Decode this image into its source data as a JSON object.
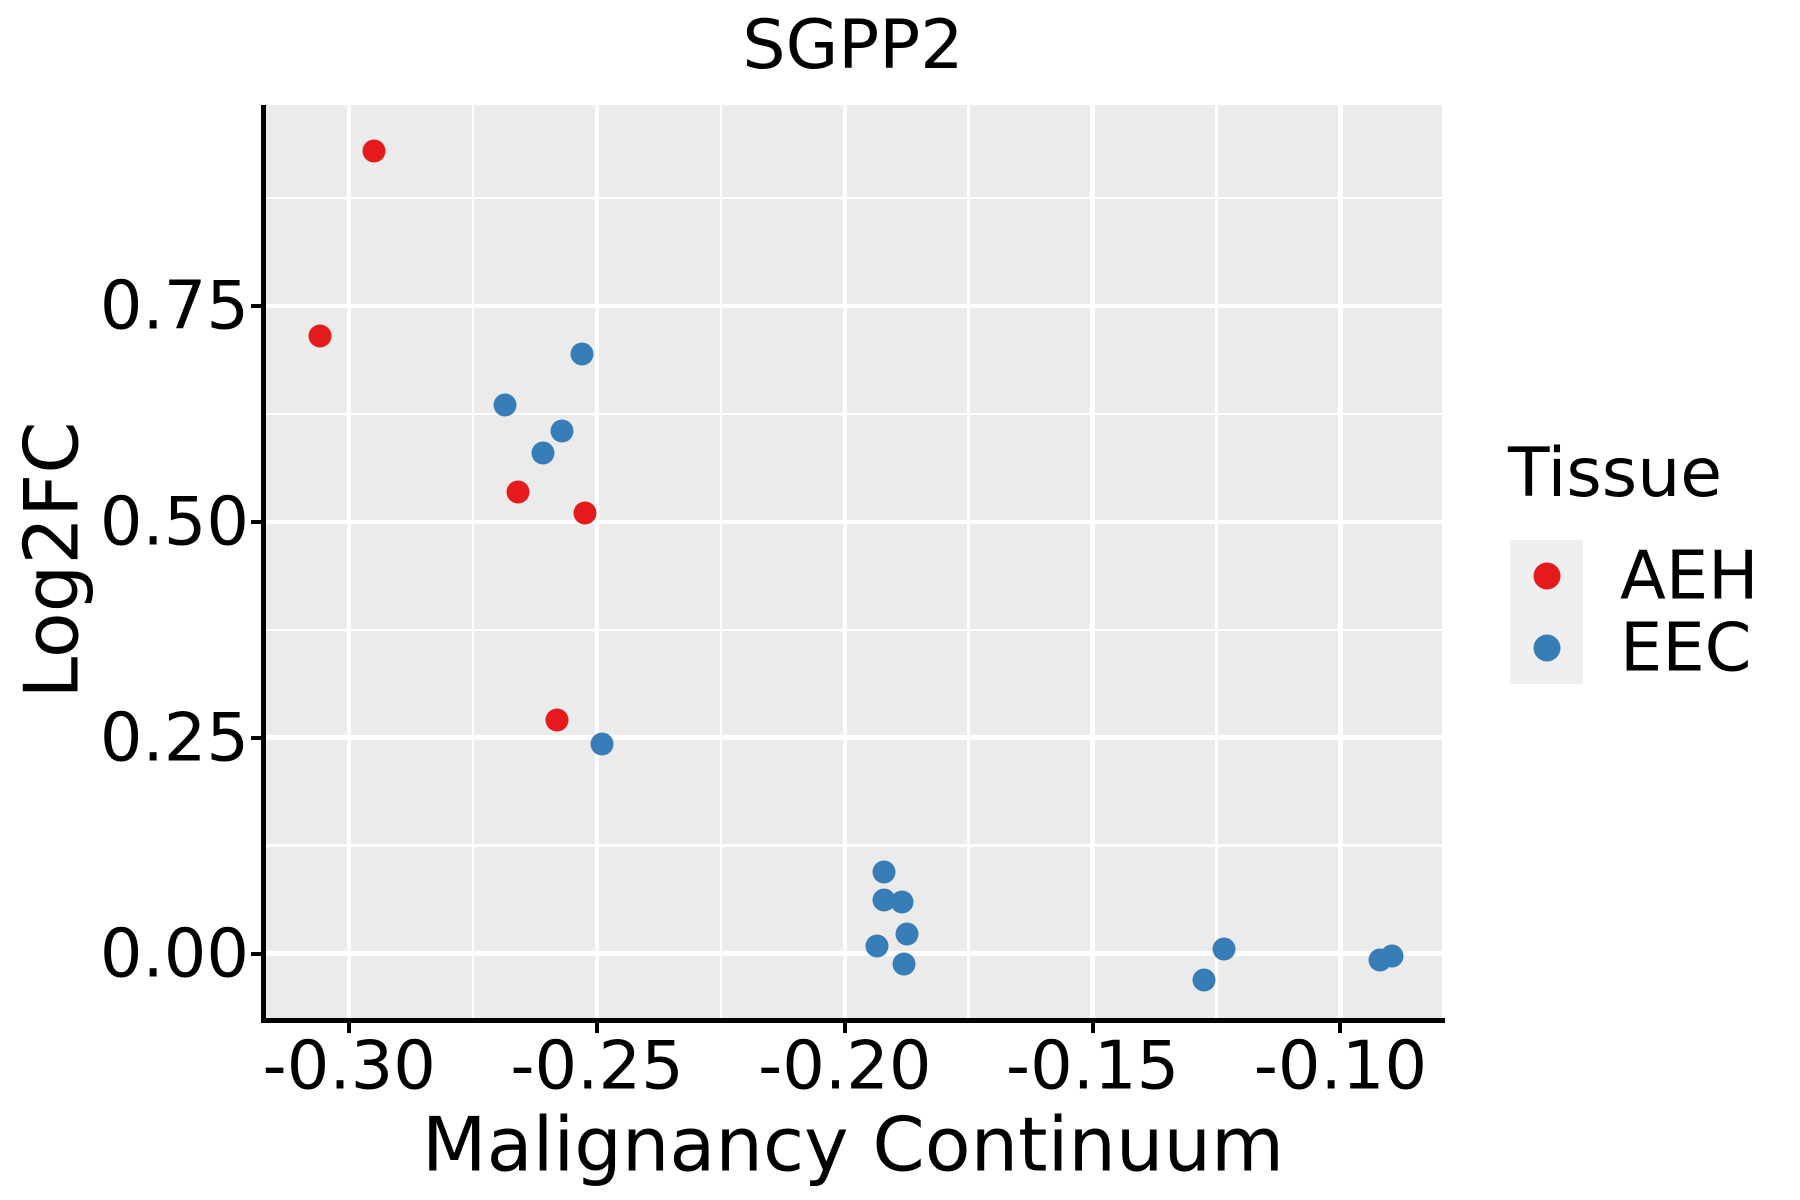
{
  "title": "SGPP2",
  "legend": {
    "title": "Tissue",
    "items": [
      {
        "label": "AEH",
        "color": "#E41A1C"
      },
      {
        "label": "EEC",
        "color": "#377EB8"
      }
    ]
  },
  "chart_data": {
    "type": "scatter",
    "title": "SGPP2",
    "xlabel": "Malignancy Continuum",
    "ylabel": "Log2FC",
    "xlim": [
      -0.317,
      -0.0795
    ],
    "ylim": [
      -0.077,
      0.983
    ],
    "grid": true,
    "legend_position": "right",
    "panel_background": "#EBEBEB",
    "grid_color": "#FFFFFF",
    "axis_color": "#000000",
    "x_ticks": [
      {
        "v": -0.3,
        "label": "-0.30"
      },
      {
        "v": -0.25,
        "label": "-0.25"
      },
      {
        "v": -0.2,
        "label": "-0.20"
      },
      {
        "v": -0.15,
        "label": "-0.15"
      },
      {
        "v": -0.1,
        "label": "-0.10"
      }
    ],
    "x_minor_ticks": [
      -0.275,
      -0.225,
      -0.175,
      -0.125
    ],
    "y_ticks": [
      {
        "v": 0.0,
        "label": "0.00"
      },
      {
        "v": 0.25,
        "label": "0.25"
      },
      {
        "v": 0.5,
        "label": "0.50"
      },
      {
        "v": 0.75,
        "label": "0.75"
      }
    ],
    "y_minor_ticks": [
      0.125,
      0.375,
      0.625,
      0.875
    ],
    "series": [
      {
        "name": "AEH",
        "color": "#E41A1C",
        "points": [
          [
            -0.295,
            0.93
          ],
          [
            -0.306,
            0.715
          ],
          [
            -0.266,
            0.535
          ],
          [
            -0.2525,
            0.51
          ],
          [
            -0.258,
            0.27
          ]
        ]
      },
      {
        "name": "EEC",
        "color": "#377EB8",
        "points": [
          [
            -0.253,
            0.695
          ],
          [
            -0.2685,
            0.635
          ],
          [
            -0.257,
            0.605
          ],
          [
            -0.261,
            0.58
          ],
          [
            -0.249,
            0.243
          ],
          [
            -0.192,
            0.094
          ],
          [
            -0.192,
            0.062
          ],
          [
            -0.1885,
            0.06
          ],
          [
            -0.1875,
            0.023
          ],
          [
            -0.1935,
            0.009
          ],
          [
            -0.188,
            -0.012
          ],
          [
            -0.1235,
            0.005
          ],
          [
            -0.1275,
            -0.031
          ],
          [
            -0.092,
            -0.008
          ],
          [
            -0.0895,
            -0.003
          ]
        ]
      }
    ]
  }
}
